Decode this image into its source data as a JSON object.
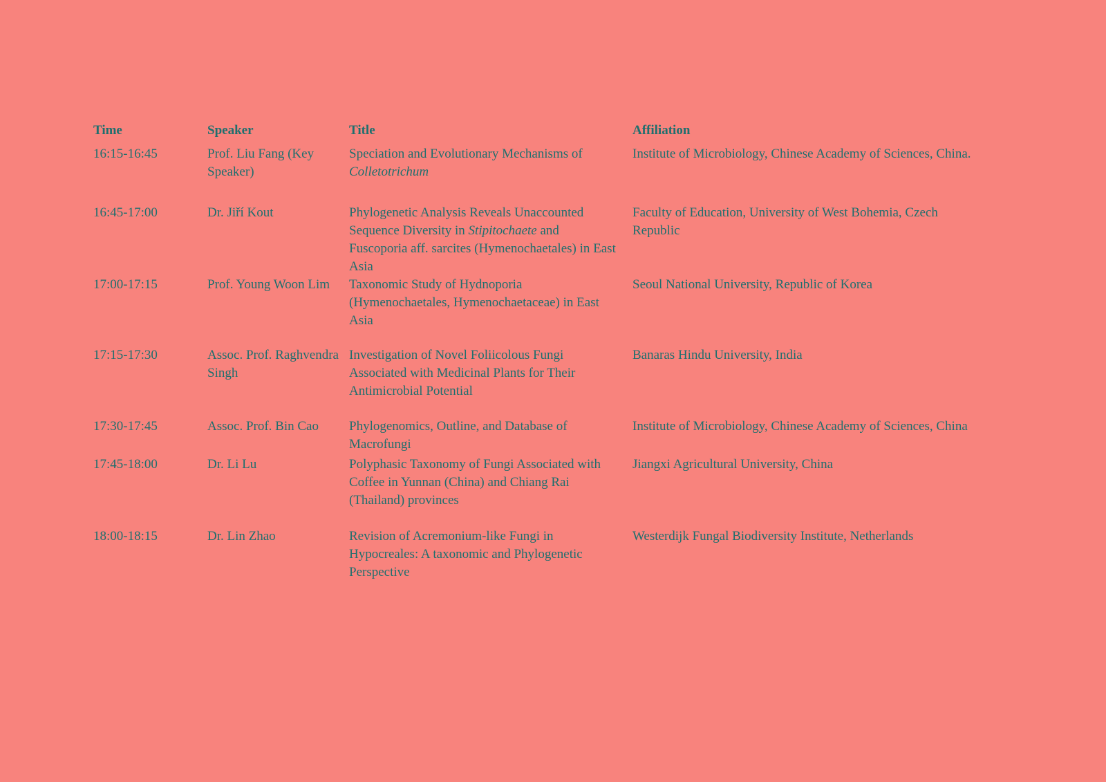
{
  "colors": {
    "background": "#F8837D",
    "text": "#1F6F6E"
  },
  "table": {
    "headers": [
      "Time",
      "Speaker",
      "Title",
      "Affiliation"
    ],
    "rows": [
      {
        "time": "16:15-16:45",
        "speaker": "Prof. Liu Fang (Key Speaker)",
        "title_segments": [
          {
            "text": "Speciation and Evolutionary Mechanisms of ",
            "italic": false
          },
          {
            "text": "Colletotrichum",
            "italic": true
          }
        ],
        "affiliation": "Institute of Microbiology, Chinese Academy of Sciences, China."
      },
      {
        "time": "16:45-17:00",
        "speaker": "Dr. Jiří Kout",
        "title_segments": [
          {
            "text": "Phylogenetic Analysis Reveals Unaccounted Sequence Diversity in ",
            "italic": false
          },
          {
            "text": "Stipitochaete",
            "italic": true
          },
          {
            "text": " and Fuscoporia aff. sarcites (Hymenochaetales) in East Asia",
            "italic": false
          }
        ],
        "affiliation": "Faculty of Education, University of West Bohemia, Czech Republic"
      },
      {
        "time": "17:00-17:15",
        "speaker": "Prof. Young Woon Lim",
        "title_segments": [
          {
            "text": "Taxonomic Study of Hydnoporia (Hymenochaetales, Hymenochaetaceae) in East Asia",
            "italic": false
          }
        ],
        "affiliation": "Seoul National University, Republic of Korea"
      },
      {
        "time": "17:15-17:30",
        "speaker": "Assoc. Prof. Raghvendra Singh",
        "title_segments": [
          {
            "text": "Investigation of Novel Foliicolous Fungi Associated with Medicinal Plants for Their Antimicrobial Potential",
            "italic": false
          }
        ],
        "affiliation": "Banaras Hindu University, India"
      },
      {
        "time": "17:30-17:45",
        "speaker": "Assoc. Prof. Bin Cao",
        "title_segments": [
          {
            "text": "Phylogenomics, Outline, and Database of Macrofungi",
            "italic": false
          }
        ],
        "affiliation": "Institute of Microbiology, Chinese Academy of Sciences, China"
      },
      {
        "time": "17:45-18:00",
        "speaker": "Dr. Li Lu",
        "title_segments": [
          {
            "text": "Polyphasic Taxonomy of Fungi Associated with Coffee in Yunnan (China) and Chiang Rai (Thailand) provinces",
            "italic": false
          }
        ],
        "affiliation": "Jiangxi Agricultural University, China"
      },
      {
        "time": "18:00-18:15",
        "speaker": "Dr. Lin Zhao",
        "title_segments": [
          {
            "text": "Revision of Acremonium-like Fungi in Hypocreales: A taxonomic and Phylogenetic Perspective",
            "italic": false
          }
        ],
        "affiliation": "Westerdijk Fungal Biodiversity Institute, Netherlands"
      }
    ]
  }
}
